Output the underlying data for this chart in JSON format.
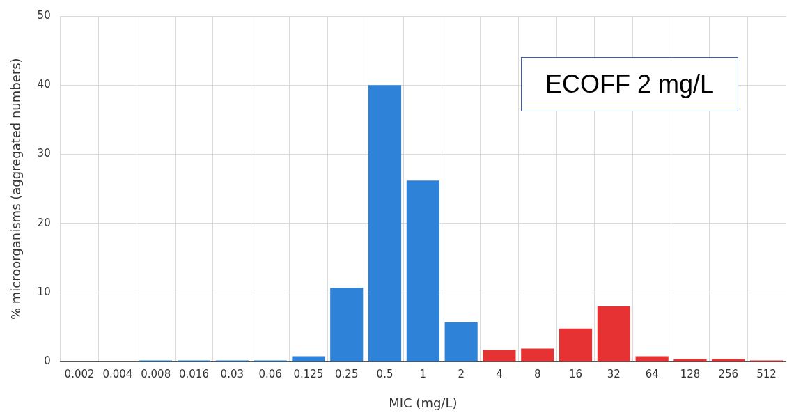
{
  "chart_data": {
    "type": "bar",
    "xlabel": "MIC (mg/L)",
    "ylabel": "% microorganisms (aggregated numbers)",
    "categories": [
      "0.002",
      "0.004",
      "0.008",
      "0.016",
      "0.03",
      "0.06",
      "0.125",
      "0.25",
      "0.5",
      "1",
      "2",
      "4",
      "8",
      "16",
      "32",
      "64",
      "128",
      "256",
      "512"
    ],
    "values": [
      0,
      0,
      0.2,
      0.2,
      0.2,
      0.2,
      0.8,
      10.7,
      40,
      26.2,
      5.7,
      1.7,
      1.9,
      4.8,
      8.0,
      0.8,
      0.4,
      0.4,
      0.2
    ],
    "colors": [
      "#2e83d9",
      "#2e83d9",
      "#2e83d9",
      "#2e83d9",
      "#2e83d9",
      "#2e83d9",
      "#2e83d9",
      "#2e83d9",
      "#2e83d9",
      "#2e83d9",
      "#2e83d9",
      "#e63232",
      "#e63232",
      "#e63232",
      "#e63232",
      "#e63232",
      "#e63232",
      "#e63232",
      "#e63232"
    ],
    "ylim": [
      0,
      50
    ],
    "yticks": [
      0,
      10,
      20,
      30,
      40,
      50
    ],
    "grid": true,
    "annotations": [
      "ECOFF 2 mg/L"
    ]
  }
}
